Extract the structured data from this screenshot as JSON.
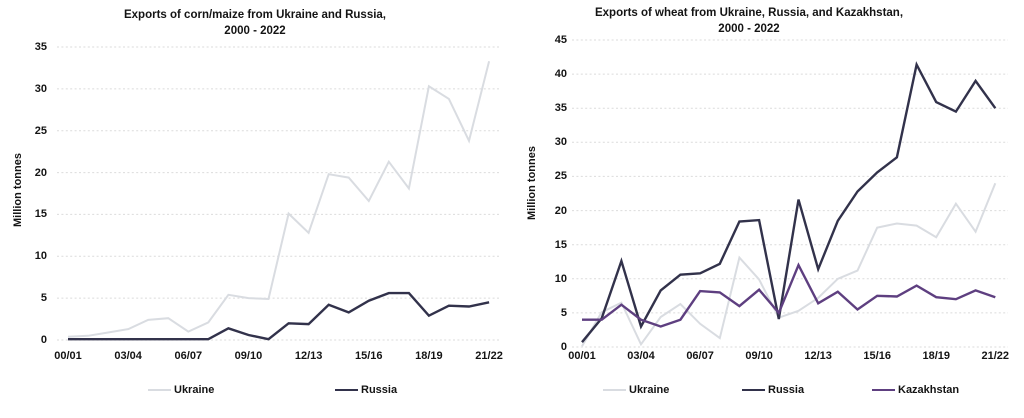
{
  "canvas": {
    "background": "#ffffff",
    "text_color": "#141414",
    "gridline_color": "#dbdbdb"
  },
  "chart_data": [
    {
      "type": "line",
      "title": "Exports of corn/maize from Ukraine and Russia,",
      "subtitle": "2000 - 2022",
      "ylabel": "Million tonnes",
      "xlabel": "",
      "ylim": [
        0,
        35
      ],
      "yticks": [
        0,
        5,
        10,
        15,
        20,
        25,
        30,
        35
      ],
      "grid": "horizontal-dotted",
      "legend_position": "bottom",
      "categories": [
        "00/01",
        "01/02",
        "02/03",
        "03/04",
        "04/05",
        "05/06",
        "06/07",
        "07/08",
        "08/09",
        "09/10",
        "10/11",
        "11/12",
        "12/13",
        "13/14",
        "14/15",
        "15/16",
        "16/17",
        "17/18",
        "18/19",
        "19/20",
        "20/21",
        "21/22"
      ],
      "xtick_indices": [
        0,
        3,
        6,
        9,
        12,
        15,
        18,
        21
      ],
      "xtick_labels": [
        "00/01",
        "03/04",
        "06/07",
        "09/10",
        "12/13",
        "15/16",
        "18/19",
        "21/22"
      ],
      "series": [
        {
          "name": "Ukraine",
          "color": "#d9dce1",
          "line_width": 2,
          "values": [
            0.4,
            0.5,
            0.9,
            1.3,
            2.4,
            2.6,
            1.0,
            2.1,
            5.4,
            5.0,
            4.9,
            15.1,
            12.8,
            19.8,
            19.4,
            16.6,
            21.3,
            18.1,
            30.3,
            28.8,
            23.8,
            33.3
          ]
        },
        {
          "name": "Russia",
          "color": "#32324b",
          "line_width": 2.4,
          "values": [
            0.1,
            0.1,
            0.1,
            0.1,
            0.1,
            0.1,
            0.1,
            0.1,
            1.4,
            0.6,
            0.1,
            2.0,
            1.9,
            4.2,
            3.3,
            4.7,
            5.6,
            5.6,
            2.9,
            4.1,
            4.0,
            4.5
          ]
        }
      ]
    },
    {
      "type": "line",
      "title": "Exports of wheat from Ukraine, Russia, and Kazakhstan,",
      "subtitle": "2000 - 2022",
      "ylabel": "Million tonnes",
      "xlabel": "",
      "ylim": [
        0,
        45
      ],
      "yticks": [
        0,
        5,
        10,
        15,
        20,
        25,
        30,
        35,
        40,
        45
      ],
      "grid": "horizontal-dotted",
      "legend_position": "bottom",
      "categories": [
        "00/01",
        "01/02",
        "02/03",
        "03/04",
        "04/05",
        "05/06",
        "06/07",
        "07/08",
        "08/09",
        "09/10",
        "10/11",
        "11/12",
        "12/13",
        "13/14",
        "14/15",
        "15/16",
        "16/17",
        "17/18",
        "18/19",
        "19/20",
        "20/21",
        "21/22"
      ],
      "xtick_indices": [
        0,
        3,
        6,
        9,
        12,
        15,
        18,
        21
      ],
      "xtick_labels": [
        "00/01",
        "03/04",
        "06/07",
        "09/10",
        "12/13",
        "15/16",
        "18/19",
        "21/22"
      ],
      "series": [
        {
          "name": "Ukraine",
          "color": "#d9dce1",
          "line_width": 2,
          "values": [
            0.1,
            5.1,
            6.5,
            0.4,
            4.4,
            6.3,
            3.4,
            1.3,
            13.1,
            9.9,
            4.3,
            5.3,
            7.2,
            10.0,
            11.2,
            17.5,
            18.1,
            17.8,
            16.1,
            21.0,
            16.9,
            24.0
          ]
        },
        {
          "name": "Russia",
          "color": "#32324b",
          "line_width": 2.4,
          "values": [
            0.7,
            4.2,
            12.6,
            3.0,
            8.3,
            10.6,
            10.8,
            12.2,
            18.4,
            18.6,
            4.1,
            21.6,
            11.4,
            18.5,
            22.8,
            25.6,
            27.8,
            41.4,
            35.9,
            34.5,
            39.0,
            35.0
          ]
        },
        {
          "name": "Kazakhstan",
          "color": "#5e3f80",
          "line_width": 2.4,
          "values": [
            4.0,
            4.0,
            6.2,
            4.0,
            3.0,
            4.0,
            8.2,
            8.0,
            6.0,
            8.4,
            5.0,
            12.0,
            6.4,
            8.1,
            5.5,
            7.5,
            7.4,
            9.0,
            7.3,
            7.0,
            8.3,
            7.3
          ]
        }
      ]
    }
  ]
}
